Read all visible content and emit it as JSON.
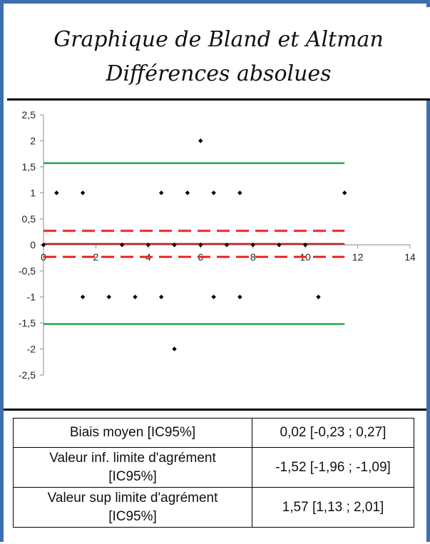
{
  "title_line1": "Graphique de Bland et Altman",
  "title_line2": "Différences absolues",
  "chart_data": {
    "type": "scatter",
    "title": "Graphique de Bland et Altman — Différences absolues",
    "xlim": [
      0,
      14
    ],
    "ylim": [
      -2.5,
      2.5
    ],
    "x_ticks": [
      0,
      2,
      4,
      6,
      8,
      10,
      12,
      14
    ],
    "y_ticks": [
      2.5,
      2,
      1.5,
      1,
      0.5,
      0,
      -0.5,
      -1,
      -1.5,
      -2,
      -2.5
    ],
    "x_tick_labels": [
      "0",
      "2",
      "4",
      "6",
      "8",
      "10",
      "12",
      "14"
    ],
    "y_tick_labels": [
      "2,5",
      "2",
      "1,5",
      "1",
      "0,5",
      "0",
      "-0,5",
      "-1",
      "-1,5",
      "-2",
      "-2,5"
    ],
    "grid": false,
    "points": [
      {
        "x": 0,
        "y": 0
      },
      {
        "x": 0.5,
        "y": 1
      },
      {
        "x": 1.5,
        "y": 1
      },
      {
        "x": 1.5,
        "y": -1
      },
      {
        "x": 2.5,
        "y": -1
      },
      {
        "x": 3,
        "y": 0
      },
      {
        "x": 3.5,
        "y": -1
      },
      {
        "x": 4,
        "y": 0
      },
      {
        "x": 4.5,
        "y": 1
      },
      {
        "x": 4.5,
        "y": -1
      },
      {
        "x": 5,
        "y": 0
      },
      {
        "x": 5,
        "y": -2
      },
      {
        "x": 5.5,
        "y": 1
      },
      {
        "x": 6,
        "y": 2
      },
      {
        "x": 6,
        "y": 0
      },
      {
        "x": 6.5,
        "y": 1
      },
      {
        "x": 6.5,
        "y": -1
      },
      {
        "x": 7,
        "y": 0
      },
      {
        "x": 7.5,
        "y": 1
      },
      {
        "x": 7.5,
        "y": -1
      },
      {
        "x": 8,
        "y": 0
      },
      {
        "x": 9,
        "y": 0
      },
      {
        "x": 10,
        "y": 0
      },
      {
        "x": 10.5,
        "y": -1
      },
      {
        "x": 11.5,
        "y": 1
      }
    ],
    "reference_lines": [
      {
        "name": "upper_limit",
        "y": 1.57,
        "x_range": [
          0,
          11.5
        ],
        "color": "#22a84a",
        "style": "solid"
      },
      {
        "name": "upper_ci_bias",
        "y": 0.27,
        "x_range": [
          0,
          11.5
        ],
        "color": "#e8272b",
        "style": "dashed"
      },
      {
        "name": "bias",
        "y": 0.02,
        "x_range": [
          0,
          11.5
        ],
        "color": "#d42a2a",
        "style": "solid"
      },
      {
        "name": "lower_ci_bias",
        "y": -0.23,
        "x_range": [
          0,
          11.5
        ],
        "color": "#e8272b",
        "style": "dashed"
      },
      {
        "name": "lower_limit",
        "y": -1.52,
        "x_range": [
          0,
          11.5
        ],
        "color": "#22a84a",
        "style": "solid"
      }
    ]
  },
  "table": {
    "rows": [
      {
        "label": "Biais moyen [IC95%]",
        "value": "0,02 [-0,23 ; 0,27]"
      },
      {
        "label_line1": "Valeur inf. limite d'agrément",
        "label_line2": "[IC95%]",
        "value": "-1,52 [-1,96 ; -1,09]"
      },
      {
        "label_line1": "Valeur sup limite d'agrément",
        "label_line2": "[IC95%]",
        "value": "1,57 [1,13 ; 2,01]"
      }
    ]
  }
}
